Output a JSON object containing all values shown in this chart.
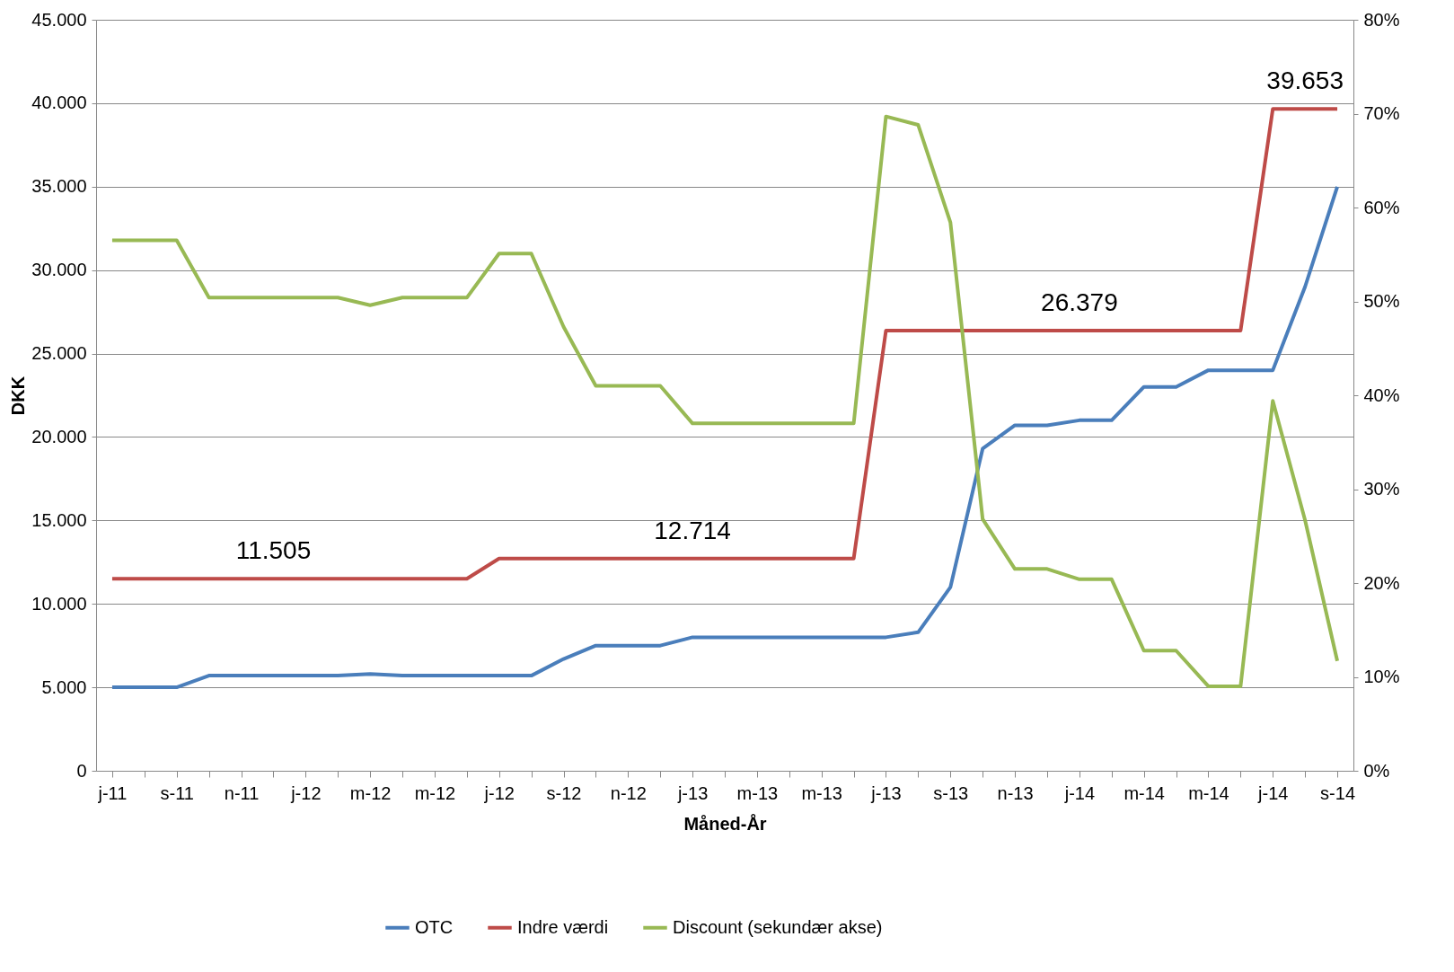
{
  "chart_data": {
    "type": "line",
    "xlabel": "Måned-År",
    "ylabel": "DKK",
    "categories": [
      "j-11",
      null,
      "s-11",
      null,
      "n-11",
      null,
      "j-12",
      null,
      "m-12",
      null,
      "m-12",
      null,
      "j-12",
      null,
      "s-12",
      null,
      "n-12",
      null,
      "j-13",
      null,
      "m-13",
      null,
      "m-13",
      null,
      "j-13",
      null,
      "s-13",
      null,
      "n-13",
      null,
      "j-14",
      null,
      "m-14",
      null,
      "m-14",
      null,
      "j-14",
      null,
      "s-14"
    ],
    "series": [
      {
        "name": "OTC",
        "color": "#4a7ebb",
        "values": [
          5000,
          5000,
          5000,
          5700,
          5700,
          5700,
          5700,
          5700,
          5800,
          5700,
          5700,
          5700,
          5700,
          5700,
          6700,
          7500,
          7500,
          7500,
          8000,
          8000,
          8000,
          8000,
          8000,
          8000,
          8000,
          8300,
          11000,
          19300,
          20700,
          20700,
          21000,
          21000,
          23000,
          23000,
          24000,
          24000,
          24000,
          29000,
          35000
        ]
      },
      {
        "name": "Indre værdi",
        "color": "#be4b48",
        "values": [
          11505,
          11505,
          11505,
          11505,
          11505,
          11505,
          11505,
          11505,
          11505,
          11505,
          11505,
          11505,
          12714,
          12714,
          12714,
          12714,
          12714,
          12714,
          12714,
          12714,
          12714,
          12714,
          12714,
          12714,
          26379,
          26379,
          26379,
          26379,
          26379,
          26379,
          26379,
          26379,
          26379,
          26379,
          26379,
          26379,
          39653,
          39653,
          39653
        ],
        "value_labels": [
          null,
          null,
          null,
          null,
          null,
          "11.505",
          null,
          null,
          null,
          null,
          null,
          null,
          null,
          null,
          null,
          null,
          null,
          null,
          "12.714",
          null,
          null,
          null,
          null,
          null,
          null,
          null,
          null,
          null,
          null,
          null,
          "26.379",
          null,
          null,
          null,
          null,
          null,
          null,
          "39.653",
          null
        ]
      },
      {
        "name": "Discount (sekundær akse)",
        "color": "#98b954",
        "axis": "y2",
        "values": [
          56.5,
          56.5,
          56.5,
          50.4,
          50.4,
          50.4,
          50.4,
          50.4,
          49.6,
          50.4,
          50.4,
          50.4,
          55.1,
          55.1,
          47.3,
          41.0,
          41.0,
          41.0,
          37.0,
          37.0,
          37.0,
          37.0,
          37.0,
          37.0,
          69.7,
          68.8,
          58.4,
          26.8,
          21.5,
          21.5,
          20.4,
          20.4,
          12.8,
          12.8,
          9.0,
          9.0,
          39.4,
          26.7,
          11.7
        ]
      }
    ],
    "ylim": [
      0,
      45000
    ],
    "yticks": [
      0,
      {
        "value": 5000,
        "label": "5.000"
      },
      {
        "value": 10000,
        "label": "10.000"
      },
      {
        "value": 15000,
        "label": "15.000"
      },
      {
        "value": 20000,
        "label": "20.000"
      },
      {
        "value": 25000,
        "label": "25.000"
      },
      {
        "value": 30000,
        "label": "30.000"
      },
      {
        "value": 35000,
        "label": "35.000"
      },
      {
        "value": 40000,
        "label": "40.000"
      },
      {
        "value": 45000,
        "label": "45.000"
      }
    ],
    "y2lim": [
      0,
      80
    ],
    "y2ticks": [
      {
        "value": 0,
        "label": "0%"
      },
      {
        "value": 10,
        "label": "10%"
      },
      {
        "value": 20,
        "label": "20%"
      },
      {
        "value": 30,
        "label": "30%"
      },
      {
        "value": 40,
        "label": "40%"
      },
      {
        "value": 50,
        "label": "50%"
      },
      {
        "value": 60,
        "label": "60%"
      },
      {
        "value": 70,
        "label": "70%"
      },
      {
        "value": 80,
        "label": "80%"
      }
    ],
    "grid": "y",
    "legend": "bottom",
    "line_style": "solid"
  }
}
